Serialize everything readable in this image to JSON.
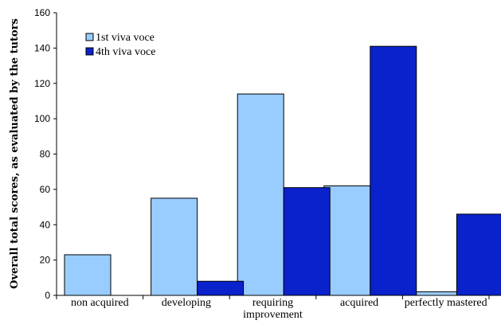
{
  "chart_data": {
    "type": "bar",
    "title": "",
    "xlabel": "",
    "ylabel": "Overall total scores, as evaluated by the tutors",
    "ylim": [
      0,
      160
    ],
    "yticks": [
      0,
      20,
      40,
      60,
      80,
      100,
      120,
      140,
      160
    ],
    "grid": false,
    "legend_position": "top-left",
    "categories": [
      [
        "non acquired"
      ],
      [
        "developing"
      ],
      [
        "requiring",
        "improvement"
      ],
      [
        "acquired"
      ],
      [
        "perfectly mastered"
      ]
    ],
    "series": [
      {
        "name": "1st viva voce",
        "color": "#99ccff",
        "values": [
          23,
          55,
          114,
          62,
          2
        ]
      },
      {
        "name": "4th viva voce",
        "color": "#0a22cc",
        "values": [
          0,
          8,
          61,
          141,
          46
        ]
      }
    ]
  }
}
